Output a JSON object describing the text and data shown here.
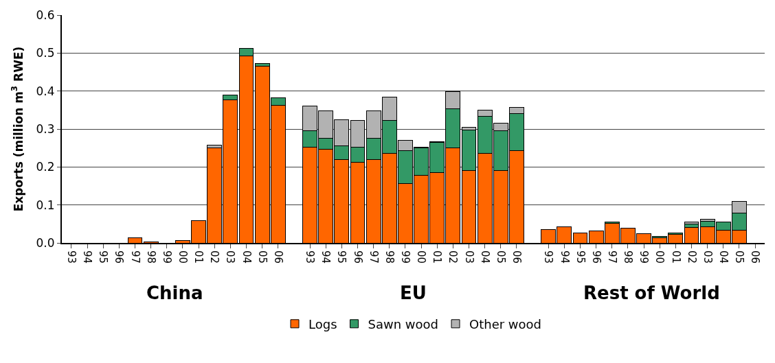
{
  "chart_data": {
    "type": "bar",
    "stacked": true,
    "categories": [
      "93",
      "94",
      "95",
      "96",
      "97",
      "98",
      "99",
      "00",
      "01",
      "02",
      "03",
      "04",
      "05",
      "06",
      null,
      "93",
      "94",
      "95",
      "96",
      "97",
      "98",
      "99",
      "00",
      "01",
      "02",
      "03",
      "04",
      "05",
      "06",
      null,
      "93",
      "94",
      "95",
      "96",
      "97",
      "98",
      "99",
      "00",
      "01",
      "02",
      "03",
      "04",
      "05",
      "06"
    ],
    "ylabel": "Exports (million m$^{3}$ RWE)",
    "ylim": [
      0,
      0.6
    ],
    "yticks": [
      {
        "value": 0,
        "label": "0.0"
      },
      {
        "value": 0.1,
        "label": "0.1"
      },
      {
        "value": 0.2,
        "label": "0.2"
      },
      {
        "value": 0.3,
        "label": "0.3"
      },
      {
        "value": 0.4,
        "label": "0.4"
      },
      {
        "value": 0.5,
        "label": "0.5"
      },
      {
        "value": 0.6,
        "label": "0.6"
      }
    ],
    "grid": "y",
    "legend": "bottom",
    "annotations": [
      "China",
      "EU",
      "Rest of World"
    ],
    "series": [
      {
        "name": "Logs",
        "color": "#ff6600",
        "values": [
          null,
          null,
          null,
          null,
          0.014,
          0.003,
          null,
          0.007,
          0.058,
          0.25,
          0.376,
          0.492,
          0.466,
          0.362,
          null,
          0.253,
          0.246,
          0.22,
          0.212,
          0.219,
          0.236,
          0.156,
          0.178,
          0.185,
          0.25,
          0.191,
          0.236,
          0.191,
          0.243,
          null,
          0.035,
          0.042,
          0.027,
          0.031,
          0.051,
          0.038,
          0.024,
          0.013,
          0.023,
          0.04,
          0.042,
          0.034,
          0.034,
          null
        ]
      },
      {
        "name": "Sawn wood",
        "color": "#339966",
        "values": [
          null,
          null,
          null,
          null,
          null,
          null,
          null,
          null,
          null,
          null,
          0.014,
          0.021,
          0.006,
          0.02,
          null,
          0.042,
          0.03,
          0.036,
          0.04,
          0.056,
          0.086,
          0.087,
          0.072,
          0.079,
          0.103,
          0.107,
          0.097,
          0.104,
          0.097,
          null,
          null,
          null,
          null,
          null,
          0.004,
          null,
          null,
          0.004,
          0.004,
          0.01,
          0.015,
          0.021,
          0.044,
          null
        ]
      },
      {
        "name": "Other wood",
        "color": "#b2b2b2",
        "values": [
          null,
          null,
          null,
          null,
          null,
          null,
          null,
          null,
          null,
          0.007,
          null,
          null,
          null,
          null,
          null,
          0.066,
          0.071,
          0.069,
          0.07,
          0.072,
          0.062,
          0.027,
          0.003,
          0.003,
          0.045,
          0.007,
          0.016,
          0.02,
          0.017,
          null,
          null,
          null,
          null,
          null,
          null,
          null,
          null,
          null,
          null,
          0.005,
          0.005,
          null,
          0.032,
          null
        ]
      }
    ]
  }
}
